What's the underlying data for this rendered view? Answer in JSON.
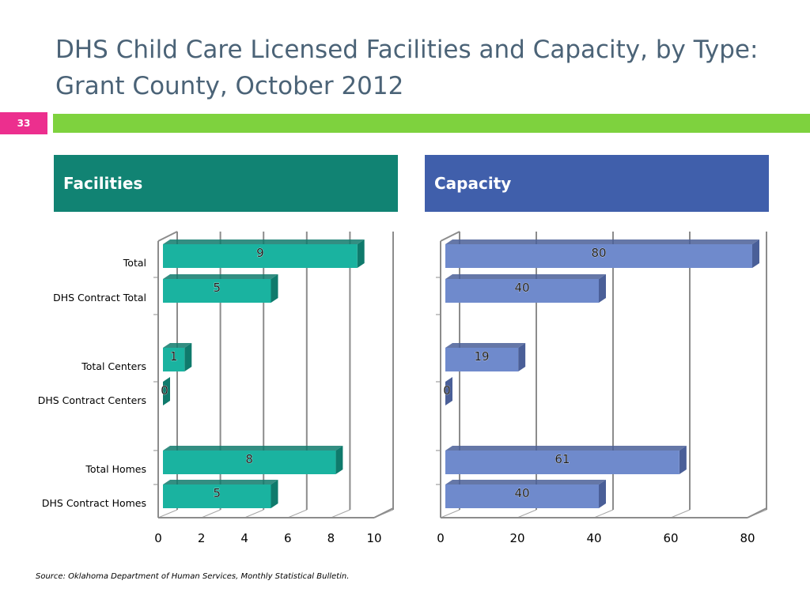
{
  "title": "DHS Child Care Licensed Facilities and Capacity, by Type:  Grant County, October 2012",
  "slide_number": "33",
  "source": "Source:  Oklahoma Department of Human Services, Monthly Statistical Bulletin.",
  "chart_data": [
    {
      "type": "bar",
      "orientation": "horizontal",
      "title": "Facilities",
      "categories": [
        "Total",
        "DHS Contract Total",
        "Total Centers",
        "DHS Contract Centers",
        "Total Homes",
        "DHS Contract Homes"
      ],
      "values": [
        9,
        5,
        1,
        0,
        8,
        5
      ],
      "xlim": [
        0,
        10
      ],
      "ticks": [
        0,
        2,
        4,
        6,
        8,
        10
      ],
      "color": "#1ab3a0",
      "color_dark": "#0f7a6c",
      "header_color": "#118373"
    },
    {
      "type": "bar",
      "orientation": "horizontal",
      "title": "Capacity",
      "categories": [
        "Total",
        "DHS Contract Total",
        "Total Centers",
        "DHS Contract Centers",
        "Total Homes",
        "DHS Contract Homes"
      ],
      "values": [
        80,
        40,
        19,
        0,
        61,
        40
      ],
      "xlim": [
        0,
        80
      ],
      "ticks": [
        0,
        20,
        40,
        60,
        80
      ],
      "color": "#6f8acc",
      "color_dark": "#4a5f98",
      "header_color": "#405fab"
    }
  ]
}
